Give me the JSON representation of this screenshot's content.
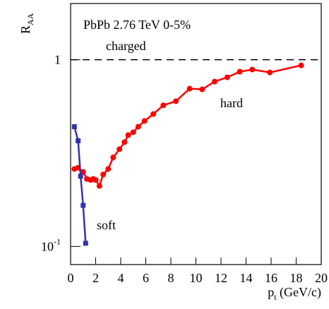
{
  "chart_data": {
    "type": "line",
    "annotations": [
      "PbPb 2.76 TeV 0-5%",
      "charged",
      "hard",
      "soft"
    ],
    "ylabel": {
      "text": "R",
      "sub": "AA"
    },
    "xlabel": {
      "text": "p",
      "sub": "t",
      "rest": " (GeV/c)"
    },
    "xlim": [
      0,
      20
    ],
    "xticks": [
      0,
      2,
      4,
      6,
      8,
      10,
      12,
      14,
      16,
      18,
      20
    ],
    "ylim": [
      0.08,
      2
    ],
    "yticks": [
      {
        "value": 1,
        "label": "1"
      },
      {
        "value": 0.1,
        "label": "10",
        "exponent": "-1"
      }
    ],
    "log_y": true,
    "reference_line": 1,
    "series": [
      {
        "name": "hard",
        "color": "#ff0000",
        "marker": "circle",
        "x": [
          0.3,
          0.6,
          1.0,
          1.3,
          1.6,
          1.8,
          2.0,
          2.3,
          2.6,
          3.0,
          3.4,
          3.9,
          4.3,
          4.6,
          5.0,
          5.4,
          5.9,
          6.6,
          7.4,
          8.4,
          9.5,
          10.5,
          11.5,
          12.5,
          13.5,
          14.5,
          15.9,
          18.4
        ],
        "values": [
          0.26,
          0.264,
          0.251,
          0.23,
          0.227,
          0.23,
          0.227,
          0.211,
          0.243,
          0.26,
          0.3,
          0.332,
          0.362,
          0.395,
          0.409,
          0.438,
          0.47,
          0.512,
          0.57,
          0.6,
          0.7,
          0.694,
          0.764,
          0.805,
          0.863,
          0.886,
          0.855,
          0.933
        ]
      },
      {
        "name": "soft",
        "color": "#3333aa",
        "marker": "square",
        "x": [
          0.3,
          0.6,
          0.8,
          1.0,
          1.2
        ],
        "values": [
          0.438,
          0.368,
          0.238,
          0.166,
          0.104
        ]
      }
    ]
  }
}
